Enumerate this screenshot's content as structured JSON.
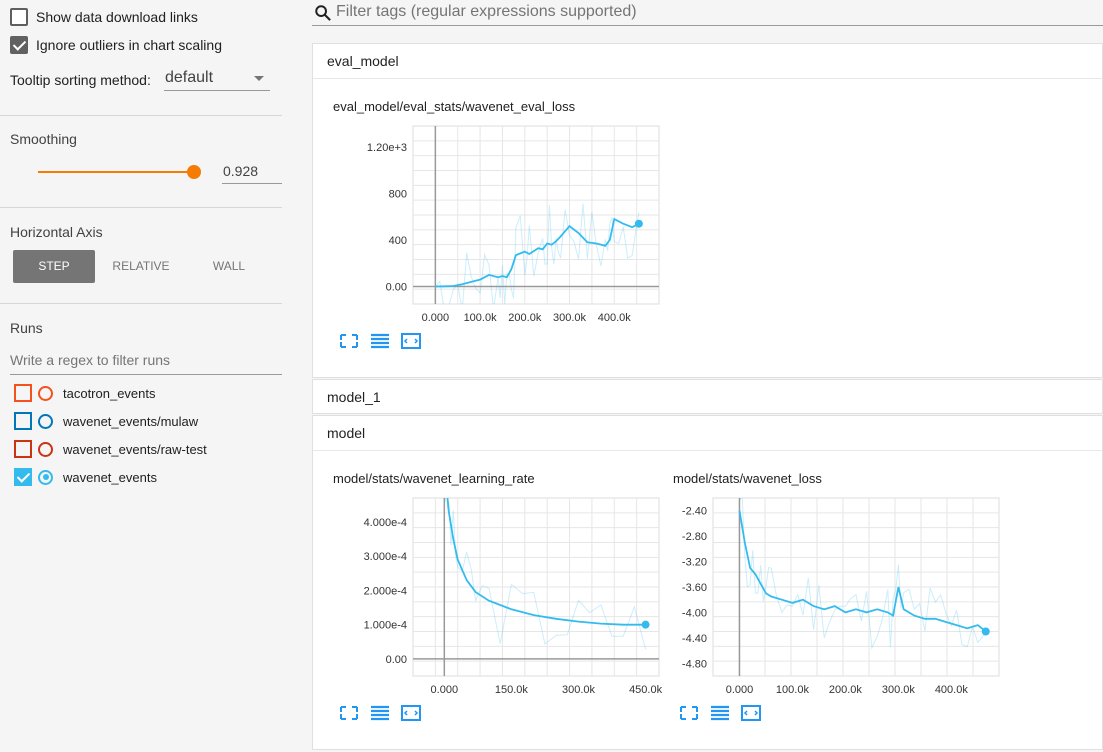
{
  "sidebar": {
    "show_download": {
      "label": "Show data download links",
      "checked": false
    },
    "ignore_outliers": {
      "label": "Ignore outliers in chart scaling",
      "checked": true
    },
    "tooltip": {
      "label": "Tooltip sorting method:",
      "value": "default"
    },
    "smoothing": {
      "title": "Smoothing",
      "value": "0.928",
      "level": 0.928
    },
    "horizontal_axis": {
      "title": "Horizontal Axis",
      "options": [
        "STEP",
        "RELATIVE",
        "WALL"
      ],
      "selected": "STEP"
    },
    "runs": {
      "title": "Runs",
      "filter_placeholder": "Write a regex to filter runs",
      "items": [
        {
          "name": "tacotron_events",
          "color": "#f4511e",
          "checked": false
        },
        {
          "name": "wavenet_events/mulaw",
          "color": "#0077bb",
          "checked": false
        },
        {
          "name": "wavenet_events/raw-test",
          "color": "#cc3311",
          "checked": false
        },
        {
          "name": "wavenet_events",
          "color": "#33bbee",
          "checked": true
        }
      ]
    }
  },
  "search": {
    "placeholder": "Filter tags (regular expressions supported)"
  },
  "sections": {
    "eval_model": "eval_model",
    "model_1": "model_1",
    "model": "model"
  },
  "chart_data": [
    {
      "type": "line",
      "title": "eval_model/eval_stats/wavenet_eval_loss",
      "x_ticks": [
        "0.000",
        "100.0k",
        "200.0k",
        "300.0k",
        "400.0k"
      ],
      "y_ticks": [
        "0.00",
        "400",
        "800",
        "1.20e+3"
      ],
      "xlim": [
        -50000,
        500000
      ],
      "ylim": [
        -150,
        1380
      ],
      "series": [
        {
          "color": "#33bbee",
          "x": [
            0,
            20000,
            40000,
            60000,
            80000,
            100000,
            120000,
            140000,
            150000,
            160000,
            170000,
            180000,
            200000,
            210000,
            230000,
            240000,
            250000,
            260000,
            270000,
            280000,
            300000,
            320000,
            340000,
            360000,
            380000,
            390000,
            400000,
            420000,
            440000,
            455000
          ],
          "y": [
            0,
            2,
            5,
            20,
            40,
            60,
            100,
            80,
            90,
            80,
            150,
            270,
            300,
            280,
            330,
            320,
            370,
            360,
            390,
            430,
            520,
            460,
            380,
            370,
            350,
            400,
            580,
            540,
            510,
            540
          ]
        }
      ]
    },
    {
      "type": "line",
      "title": "model/stats/wavenet_learning_rate",
      "x_ticks": [
        "0.000",
        "150.0k",
        "300.0k",
        "450.0k"
      ],
      "y_ticks": [
        "0.00",
        "1.000e-4",
        "2.000e-4",
        "3.000e-4",
        "4.000e-4"
      ],
      "xlim": [
        -70000,
        480000
      ],
      "ylim": [
        -5e-05,
        0.00047
      ],
      "series": [
        {
          "color": "#33bbee",
          "x": [
            0,
            5000,
            10000,
            20000,
            30000,
            50000,
            70000,
            100000,
            150000,
            200000,
            250000,
            300000,
            350000,
            400000,
            450000
          ],
          "y": [
            0.00055,
            0.0005,
            0.00043,
            0.00035,
            0.00029,
            0.00023,
            0.000195,
            0.00017,
            0.000145,
            0.000128,
            0.000117,
            0.000109,
            0.000103,
            0.0001,
            0.0001
          ]
        }
      ]
    },
    {
      "type": "line",
      "title": "model/stats/wavenet_loss",
      "x_ticks": [
        "0.000",
        "100.0k",
        "200.0k",
        "300.0k",
        "400.0k"
      ],
      "y_ticks": [
        "-4.80",
        "-4.40",
        "-4.00",
        "-3.60",
        "-3.20",
        "-2.80",
        "-2.40"
      ],
      "xlim": [
        -50000,
        490000
      ],
      "ylim": [
        -5.0,
        -2.2
      ],
      "series": [
        {
          "color": "#33bbee",
          "x": [
            0,
            10000,
            20000,
            30000,
            40000,
            50000,
            60000,
            80000,
            100000,
            120000,
            140000,
            160000,
            180000,
            200000,
            220000,
            240000,
            260000,
            280000,
            290000,
            300000,
            310000,
            330000,
            350000,
            370000,
            390000,
            410000,
            430000,
            450000,
            465000
          ],
          "y": [
            -2.4,
            -2.9,
            -3.3,
            -3.4,
            -3.55,
            -3.7,
            -3.75,
            -3.8,
            -3.85,
            -3.8,
            -3.9,
            -3.95,
            -3.9,
            -4.0,
            -3.95,
            -4.0,
            -3.95,
            -4.0,
            -4.05,
            -3.6,
            -3.95,
            -4.05,
            -4.1,
            -4.1,
            -4.15,
            -4.2,
            -4.25,
            -4.2,
            -4.3
          ]
        }
      ]
    }
  ]
}
